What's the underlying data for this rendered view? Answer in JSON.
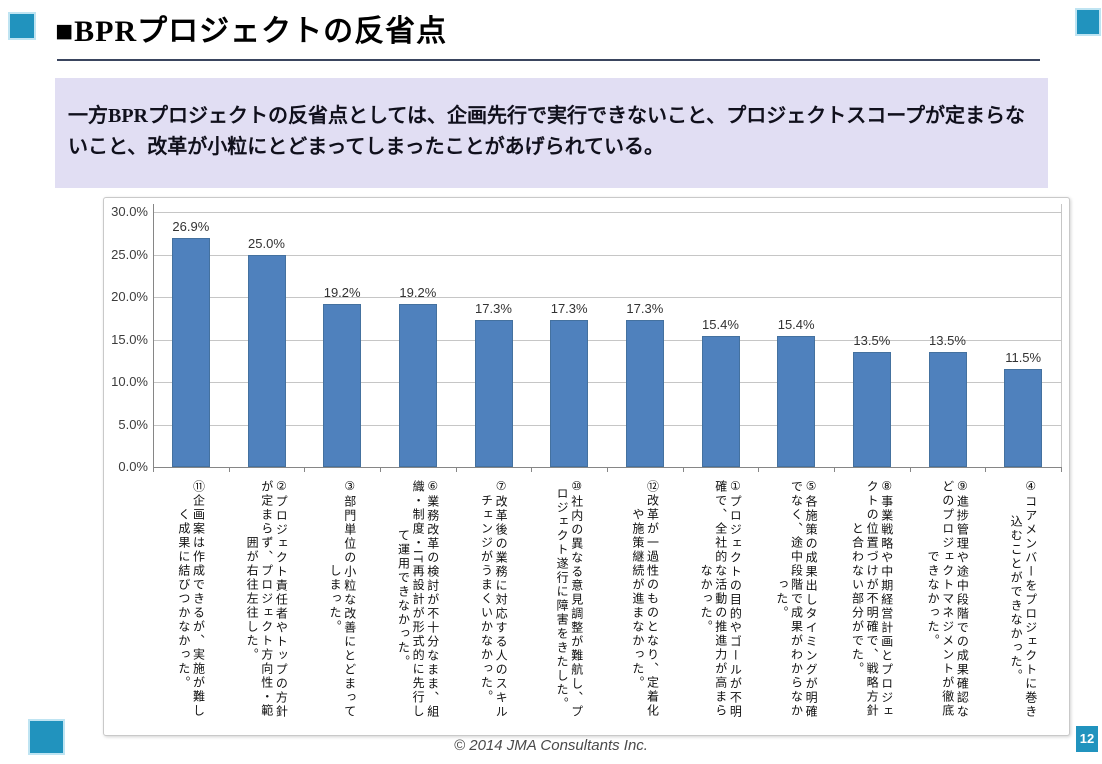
{
  "slide": {
    "title": "■BPRプロジェクトの反省点",
    "summary": "一方BPRプロジェクトの反省点としては、企画先行で実行できないこと、プロジェクトスコープが定まらないこと、改革が小粒にとどまってしまったことがあげられている。",
    "footer": {
      "copyright": "© 2014 JMA Consultants Inc.",
      "page_number": "12"
    }
  },
  "colors": {
    "accent_teal": "#2193BE",
    "summary_bg": "#E1DEF3",
    "bar_blue": "#4F81BD",
    "gridline_gray": "#c6c6c6"
  },
  "chart_data": {
    "type": "bar",
    "title": "",
    "xlabel": "",
    "ylabel": "",
    "ylim": [
      0,
      30
    ],
    "grid": true,
    "legend": "none",
    "bar_color": "#4F81BD",
    "yticks": [
      "0.0%",
      "5.0%",
      "10.0%",
      "15.0%",
      "20.0%",
      "25.0%",
      "30.0%"
    ],
    "categories": [
      "⑪企画案は作成できるが、実施が難しく成果に結びつかなかった。",
      "②プロジェクト責任者やトップの方針が定まらず、プロジェクト方向性・範囲が右往左往した。",
      "③部門単位の小粒な改善にとどまってしまった。",
      "⑥業務改革の検討が不十分なまま、組織・制度・IT再設計が形式的に先行して運用できなかった。",
      "⑦改革後の業務に対応する人のスキルチェンジがうまくいかなかった。",
      "⑩社内の異なる意見調整が難航し、プロジェクト遂行に障害をきたした。",
      "⑫改革が一過性のものとなり、定着化や施策継続が進まなかった。",
      "①プロジェクトの目的やゴールが不明確で、全社的な活動の推進力が高まらなかった。",
      "⑤各施策の成果出しタイミングが明確でなく、途中段階で成果がわからなかった。",
      "⑧事業戦略や中期経営計画とプロジェクトの位置づけが不明確で、戦略方針と合わない部分がでた。",
      "⑨進捗管理や途中段階での成果確認などのプロジェクトマネジメントが徹底できなかった。",
      "④コアメンバーをプロジェクトに巻き込むことができなかった。"
    ],
    "values": [
      26.9,
      25.0,
      19.2,
      19.2,
      17.3,
      17.3,
      17.3,
      15.4,
      15.4,
      13.5,
      13.5,
      11.5
    ],
    "value_labels": [
      "26.9%",
      "25.0%",
      "19.2%",
      "19.2%",
      "17.3%",
      "17.3%",
      "17.3%",
      "15.4%",
      "15.4%",
      "13.5%",
      "13.5%",
      "11.5%"
    ]
  }
}
